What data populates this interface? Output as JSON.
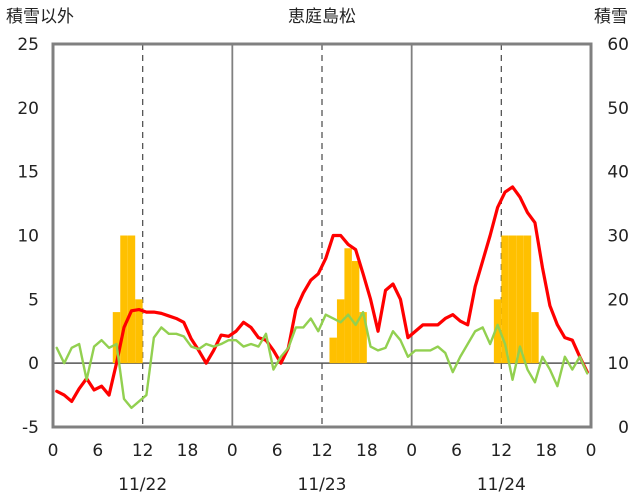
{
  "chart_data": {
    "type": "bar",
    "title": "恵庭島松",
    "ylabel_left": "積雪以外",
    "ylabel_right": "積雪",
    "x_tick_labels": [
      "0",
      "6",
      "12",
      "18",
      "0",
      "6",
      "12",
      "18",
      "0",
      "6",
      "12",
      "18",
      "0"
    ],
    "date_labels": [
      "11/22",
      "11/23",
      "11/24"
    ],
    "ylim_left": [
      -5,
      25
    ],
    "yticks_left": [
      "-5",
      "0",
      "5",
      "10",
      "15",
      "20",
      "25"
    ],
    "ylim_right": [
      0,
      60
    ],
    "yticks_right": [
      "0",
      "10",
      "20",
      "30",
      "40",
      "50",
      "60"
    ],
    "xlim_hours": [
      0,
      72
    ],
    "grid": "dashed vertical at 12h, solid vertical at day boundaries",
    "series": [
      {
        "kind": "bar",
        "axis": "left",
        "color": "#FFC000",
        "x": [
          0,
          1,
          2,
          3,
          4,
          5,
          6,
          7,
          8,
          9,
          10,
          11,
          12,
          13,
          14,
          15,
          16,
          17,
          18,
          19,
          20,
          21,
          22,
          23,
          24,
          25,
          26,
          27,
          28,
          29,
          30,
          31,
          32,
          33,
          34,
          35,
          36,
          37,
          38,
          39,
          40,
          41,
          42,
          43,
          44,
          45,
          46,
          47,
          48,
          49,
          50,
          51,
          52,
          53,
          54,
          55,
          56,
          57,
          58,
          59,
          60,
          61,
          62,
          63,
          64,
          65,
          66,
          67,
          68,
          69,
          70,
          71
        ],
        "values": [
          0,
          0,
          0,
          0,
          0,
          0,
          0,
          0,
          4,
          10,
          10,
          5,
          0,
          0,
          0,
          0,
          0,
          0,
          0,
          0,
          0,
          0,
          0,
          0,
          0,
          0,
          0,
          0,
          0,
          0,
          0,
          0,
          0,
          0,
          0,
          0,
          0,
          2,
          5,
          9,
          8,
          4,
          0,
          0,
          0,
          0,
          0,
          0,
          0,
          0,
          0,
          0,
          0,
          0,
          0,
          0,
          0,
          0,
          0,
          5,
          10,
          10,
          10,
          10,
          4,
          0,
          0,
          0,
          0,
          0,
          0,
          0
        ]
      },
      {
        "kind": "line",
        "axis": "left",
        "color": "#FF0000",
        "x": [
          0,
          1,
          2,
          3,
          4,
          5,
          6,
          7,
          8,
          9,
          10,
          11,
          12,
          13,
          14,
          15,
          16,
          17,
          18,
          19,
          20,
          21,
          22,
          23,
          24,
          25,
          26,
          27,
          28,
          29,
          30,
          31,
          32,
          33,
          34,
          35,
          36,
          37,
          38,
          39,
          40,
          41,
          42,
          43,
          44,
          45,
          46,
          47,
          48,
          49,
          50,
          51,
          52,
          53,
          54,
          55,
          56,
          57,
          58,
          59,
          60,
          61,
          62,
          63,
          64,
          65,
          66,
          67,
          68,
          69,
          70,
          71
        ],
        "values": [
          -2.2,
          -2.5,
          -3,
          -2,
          -1.2,
          -2.1,
          -1.8,
          -2.5,
          0,
          2.8,
          4.1,
          4.2,
          4,
          4,
          3.9,
          3.7,
          3.5,
          3.2,
          1.9,
          1,
          0,
          1,
          2.2,
          2.1,
          2.5,
          3.2,
          2.8,
          2,
          1.8,
          1,
          0,
          1.2,
          4.2,
          5.5,
          6.5,
          7,
          8.2,
          10,
          10,
          9.3,
          8.9,
          7,
          5,
          2.5,
          5.7,
          6.2,
          5,
          2,
          2.5,
          3,
          3,
          3,
          3.5,
          3.8,
          3.3,
          3,
          6,
          8,
          10,
          12.2,
          13.4,
          13.8,
          13,
          11.8,
          11,
          7.5,
          4.5,
          3,
          2,
          1.8,
          0.5,
          -0.7
        ]
      },
      {
        "kind": "line",
        "axis": "left",
        "color": "#92D050",
        "x": [
          0,
          1,
          2,
          3,
          4,
          5,
          6,
          7,
          8,
          9,
          10,
          11,
          12,
          13,
          14,
          15,
          16,
          17,
          18,
          19,
          20,
          21,
          22,
          23,
          24,
          25,
          26,
          27,
          28,
          29,
          30,
          31,
          32,
          33,
          34,
          35,
          36,
          37,
          38,
          39,
          40,
          41,
          42,
          43,
          44,
          45,
          46,
          47,
          48,
          49,
          50,
          51,
          52,
          53,
          54,
          55,
          56,
          57,
          58,
          59,
          60,
          61,
          62,
          63,
          64,
          65,
          66,
          67,
          68,
          69,
          70,
          71
        ],
        "values": [
          1.2,
          0,
          1.2,
          1.5,
          -1.3,
          1.3,
          1.8,
          1.2,
          1.5,
          -2.8,
          -3.5,
          -3,
          -2.5,
          2,
          2.8,
          2.3,
          2.3,
          2.1,
          1.3,
          1.1,
          1.5,
          1.3,
          1.5,
          1.8,
          1.8,
          1.3,
          1.5,
          1.3,
          2.3,
          -0.5,
          0.5,
          1.2,
          2.8,
          2.8,
          3.5,
          2.5,
          3.8,
          3.5,
          3.2,
          3.8,
          3,
          4,
          1.3,
          1,
          1.2,
          2.5,
          1.8,
          0.5,
          1,
          1,
          1,
          1.3,
          0.8,
          -0.7,
          0.5,
          1.5,
          2.5,
          2.8,
          1.5,
          3,
          1.5,
          -1.3,
          1.3,
          -0.5,
          -1.5,
          0.5,
          -0.5,
          -1.8,
          0.5,
          -0.5,
          0.5,
          -0.8
        ]
      },
      {
        "kind": "line",
        "axis": "left",
        "color": "#7030A0",
        "x": [
          0,
          72
        ],
        "values": [
          -5,
          -5
        ]
      }
    ]
  }
}
